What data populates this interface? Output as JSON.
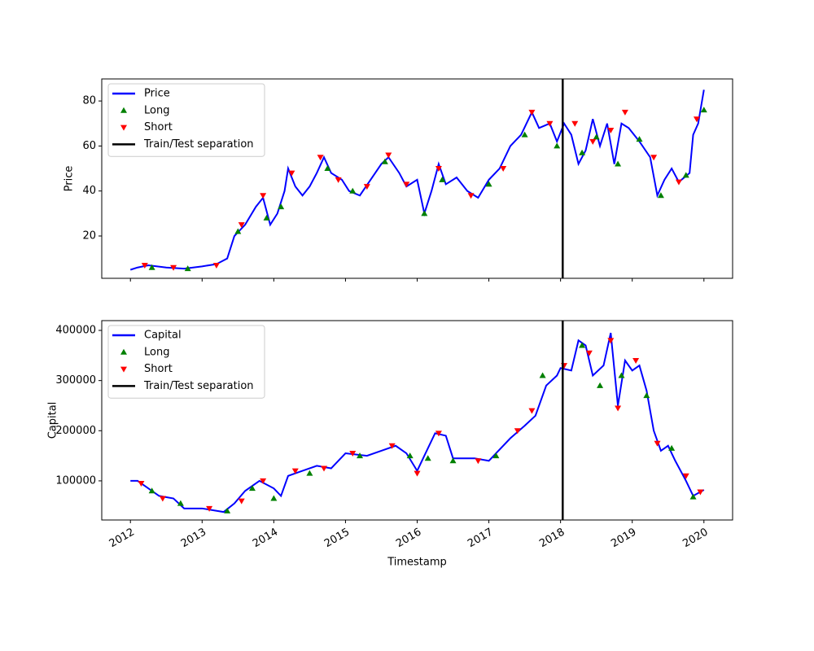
{
  "chart_data": [
    {
      "type": "line",
      "y_label": "Price",
      "xlim": [
        2011.6,
        2020.4
      ],
      "xticks": [
        2012,
        2013,
        2014,
        2015,
        2016,
        2017,
        2018,
        2019,
        2020
      ],
      "xticklabels": false,
      "ylim": [
        1.2,
        89.8
      ],
      "yticks": [
        20,
        40,
        60,
        80
      ],
      "legend": "upper left",
      "series": [
        {
          "name": "Price",
          "color": "#0000ff",
          "marker": "line",
          "x": [
            2012.0,
            2012.1,
            2012.25,
            2012.5,
            2012.75,
            2013.0,
            2013.2,
            2013.35,
            2013.45,
            2013.6,
            2013.75,
            2013.85,
            2013.95,
            2014.05,
            2014.15,
            2014.2,
            2014.3,
            2014.4,
            2014.5,
            2014.6,
            2014.7,
            2014.8,
            2014.95,
            2015.05,
            2015.2,
            2015.35,
            2015.5,
            2015.6,
            2015.75,
            2015.85,
            2016.0,
            2016.1,
            2016.2,
            2016.3,
            2016.4,
            2016.55,
            2016.7,
            2016.85,
            2017.0,
            2017.15,
            2017.3,
            2017.45,
            2017.6,
            2017.7,
            2017.85,
            2017.95,
            2018.05,
            2018.15,
            2018.25,
            2018.35,
            2018.45,
            2018.55,
            2018.65,
            2018.75,
            2018.85,
            2018.95,
            2019.1,
            2019.25,
            2019.35,
            2019.45,
            2019.55,
            2019.65,
            2019.8,
            2019.85,
            2019.92,
            2020.0
          ],
          "values": [
            5,
            6,
            7,
            6,
            5.5,
            6.5,
            7.5,
            10,
            20,
            25,
            33,
            37,
            25,
            30,
            40,
            50,
            42,
            38,
            42,
            48,
            55,
            48,
            45,
            40,
            38,
            45,
            52,
            55,
            48,
            42,
            45,
            30,
            40,
            52,
            43,
            46,
            40,
            37,
            45,
            50,
            60,
            65,
            75,
            68,
            70,
            62,
            70,
            65,
            52,
            58,
            72,
            60,
            70,
            52,
            70,
            68,
            62,
            55,
            38,
            45,
            50,
            44,
            48,
            65,
            70,
            85
          ]
        },
        {
          "name": "Long",
          "color": "#008000",
          "marker": "^",
          "x": [
            2012.3,
            2012.8,
            2013.5,
            2013.9,
            2014.1,
            2014.75,
            2015.1,
            2015.55,
            2016.1,
            2016.35,
            2017.0,
            2017.5,
            2017.95,
            2018.3,
            2018.5,
            2018.8,
            2019.1,
            2019.4,
            2019.75,
            2020.0
          ],
          "values": [
            6,
            5.5,
            22,
            28,
            33,
            50,
            40,
            53,
            30,
            45,
            43,
            65,
            60,
            57,
            64,
            52,
            63,
            38,
            47,
            76
          ]
        },
        {
          "name": "Short",
          "color": "#ff0000",
          "marker": "v",
          "x": [
            2012.2,
            2012.6,
            2013.2,
            2013.55,
            2013.85,
            2014.25,
            2014.65,
            2014.9,
            2015.3,
            2015.6,
            2015.85,
            2016.3,
            2016.75,
            2017.2,
            2017.6,
            2017.85,
            2018.2,
            2018.45,
            2018.7,
            2018.9,
            2019.3,
            2019.65,
            2019.9
          ],
          "values": [
            7,
            6,
            7,
            25,
            38,
            48,
            55,
            45,
            42,
            56,
            43,
            50,
            38,
            50,
            75,
            70,
            70,
            62,
            67,
            75,
            55,
            44,
            72
          ]
        },
        {
          "name": "Train/Test separation",
          "color": "#000000",
          "marker": "vline",
          "x": [
            2018.03
          ]
        }
      ]
    },
    {
      "type": "line",
      "y_label": "Capital",
      "x_label": "Timestamp",
      "xlim": [
        2011.6,
        2020.4
      ],
      "xticks": [
        2012,
        2013,
        2014,
        2015,
        2016,
        2017,
        2018,
        2019,
        2020
      ],
      "xticklabels": true,
      "ylim": [
        22000,
        419500
      ],
      "yticks": [
        100000,
        200000,
        300000,
        400000
      ],
      "legend": "upper left",
      "series": [
        {
          "name": "Capital",
          "color": "#0000ff",
          "marker": "line",
          "x": [
            2012.0,
            2012.1,
            2012.2,
            2012.4,
            2012.6,
            2012.75,
            2013.0,
            2013.3,
            2013.45,
            2013.6,
            2013.8,
            2014.0,
            2014.1,
            2014.2,
            2014.4,
            2014.6,
            2014.8,
            2015.0,
            2015.3,
            2015.5,
            2015.7,
            2015.85,
            2016.0,
            2016.1,
            2016.25,
            2016.4,
            2016.5,
            2016.8,
            2017.0,
            2017.3,
            2017.5,
            2017.65,
            2017.8,
            2017.95,
            2018.0,
            2018.15,
            2018.25,
            2018.35,
            2018.45,
            2018.6,
            2018.7,
            2018.8,
            2018.9,
            2019.0,
            2019.1,
            2019.2,
            2019.3,
            2019.4,
            2019.5,
            2019.6,
            2019.75,
            2019.85,
            2020.0
          ],
          "values": [
            100000,
            100000,
            90000,
            70000,
            65000,
            45000,
            45000,
            38000,
            55000,
            80000,
            100000,
            85000,
            70000,
            110000,
            120000,
            130000,
            125000,
            155000,
            150000,
            160000,
            170000,
            155000,
            120000,
            150000,
            195000,
            190000,
            145000,
            145000,
            140000,
            185000,
            210000,
            230000,
            290000,
            310000,
            325000,
            320000,
            380000,
            370000,
            310000,
            330000,
            395000,
            250000,
            340000,
            320000,
            330000,
            280000,
            200000,
            160000,
            170000,
            140000,
            100000,
            70000,
            82000
          ]
        },
        {
          "name": "Long",
          "color": "#008000",
          "marker": "^",
          "x": [
            2012.3,
            2012.7,
            2013.35,
            2013.7,
            2014.0,
            2014.5,
            2015.2,
            2015.9,
            2016.15,
            2016.5,
            2017.1,
            2017.75,
            2018.3,
            2018.55,
            2018.85,
            2019.2,
            2019.55,
            2019.85
          ],
          "values": [
            80000,
            55000,
            40000,
            85000,
            65000,
            115000,
            150000,
            150000,
            145000,
            140000,
            150000,
            310000,
            370000,
            290000,
            310000,
            270000,
            165000,
            68000
          ]
        },
        {
          "name": "Short",
          "color": "#ff0000",
          "marker": "v",
          "x": [
            2012.15,
            2012.45,
            2013.1,
            2013.55,
            2013.85,
            2014.3,
            2014.7,
            2015.1,
            2015.65,
            2016.0,
            2016.3,
            2016.85,
            2017.4,
            2017.6,
            2018.05,
            2018.4,
            2018.7,
            2018.8,
            2019.05,
            2019.35,
            2019.75,
            2019.95
          ],
          "values": [
            95000,
            65000,
            45000,
            60000,
            100000,
            120000,
            125000,
            155000,
            170000,
            115000,
            195000,
            140000,
            200000,
            240000,
            330000,
            355000,
            380000,
            245000,
            340000,
            175000,
            110000,
            78000
          ]
        },
        {
          "name": "Train/Test separation",
          "color": "#000000",
          "marker": "vline",
          "x": [
            2018.03
          ]
        }
      ]
    }
  ]
}
